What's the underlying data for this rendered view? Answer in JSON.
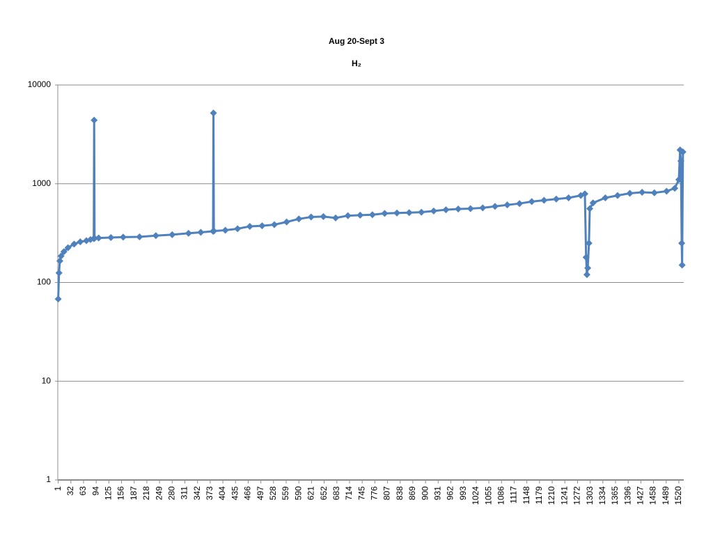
{
  "chart_data": {
    "type": "line",
    "title": "Aug 20-Sept 3",
    "subtitle": "H₂",
    "log_y": true,
    "grid": true,
    "color": "#4f81bd",
    "marker": "diamond",
    "xlim": [
      0,
      1532
    ],
    "xticks": [
      1,
      32,
      63,
      94,
      125,
      156,
      187,
      218,
      249,
      280,
      311,
      342,
      373,
      404,
      435,
      466,
      497,
      528,
      559,
      590,
      621,
      652,
      683,
      714,
      745,
      776,
      807,
      838,
      869,
      900,
      931,
      962,
      993,
      1024,
      1055,
      1086,
      1117,
      1148,
      1179,
      1210,
      1241,
      1272,
      1303,
      1334,
      1365,
      1396,
      1427,
      1458,
      1489,
      1520
    ],
    "ylim": [
      1,
      10000
    ],
    "yticks": [
      1,
      10,
      100,
      1000,
      10000
    ],
    "x": [
      1,
      3,
      5,
      8,
      15,
      25,
      40,
      55,
      70,
      80,
      88,
      89,
      90,
      100,
      130,
      160,
      200,
      240,
      280,
      320,
      350,
      380,
      381,
      382,
      410,
      440,
      470,
      500,
      530,
      560,
      590,
      620,
      650,
      680,
      710,
      740,
      770,
      800,
      830,
      860,
      890,
      920,
      950,
      980,
      1010,
      1040,
      1070,
      1100,
      1130,
      1160,
      1190,
      1220,
      1250,
      1280,
      1290,
      1293,
      1295,
      1297,
      1300,
      1302,
      1310,
      1340,
      1370,
      1400,
      1430,
      1460,
      1490,
      1510,
      1520,
      1523,
      1525,
      1527,
      1528,
      1530
    ],
    "values": [
      68,
      125,
      165,
      185,
      205,
      225,
      245,
      258,
      265,
      272,
      278,
      4400,
      280,
      282,
      285,
      288,
      290,
      298,
      305,
      315,
      322,
      330,
      5200,
      332,
      338,
      350,
      370,
      375,
      385,
      410,
      440,
      460,
      465,
      450,
      475,
      480,
      485,
      500,
      505,
      510,
      515,
      530,
      545,
      555,
      560,
      570,
      590,
      610,
      630,
      660,
      680,
      700,
      720,
      760,
      790,
      180,
      120,
      140,
      250,
      560,
      640,
      720,
      760,
      800,
      820,
      810,
      840,
      900,
      1100,
      2200,
      1700,
      250,
      150,
      2100
    ]
  }
}
